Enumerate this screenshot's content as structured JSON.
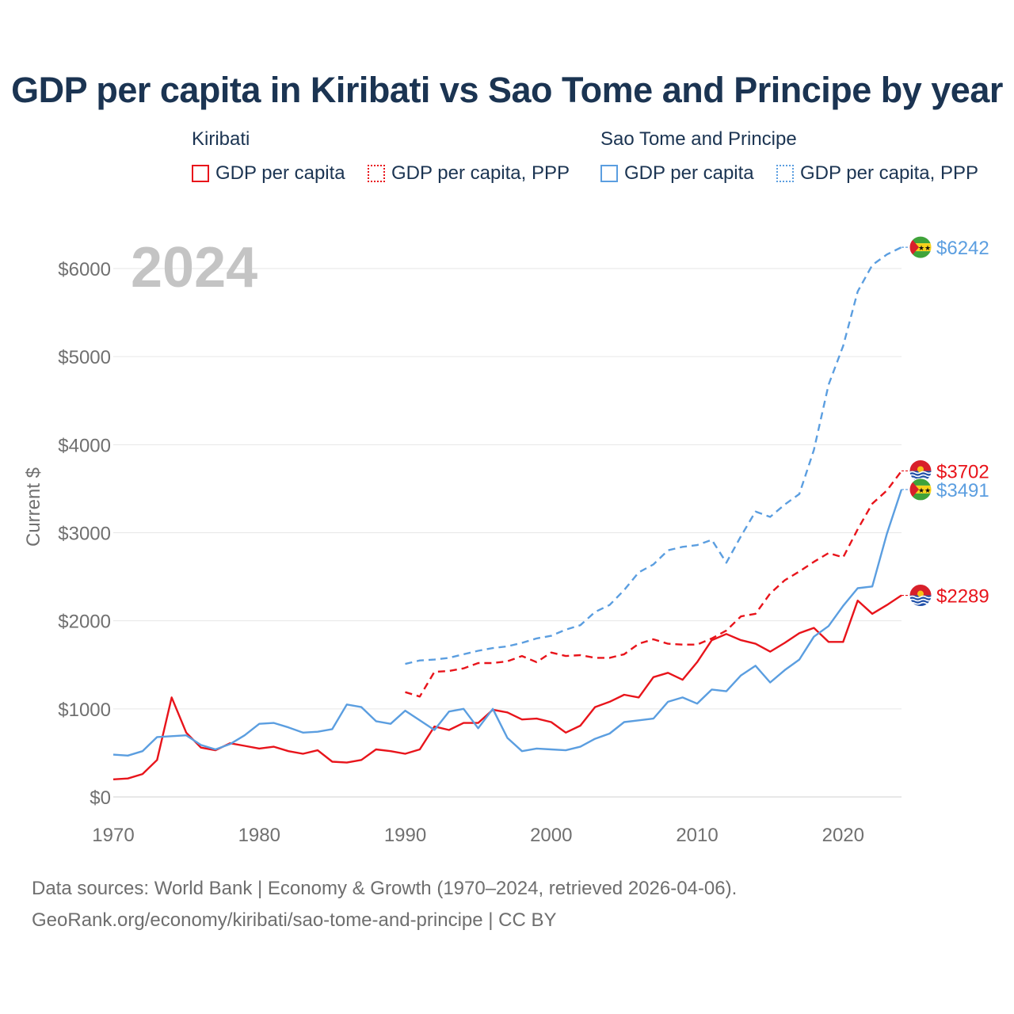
{
  "title": "GDP per capita in Kiribati vs Sao Tome and Principe by year",
  "legend": {
    "groups": [
      {
        "country": "Kiribati",
        "color": "#e8141b",
        "items": [
          {
            "label": "GDP per capita",
            "style": "solid"
          },
          {
            "label": "GDP per capita, PPP",
            "style": "dotted"
          }
        ]
      },
      {
        "country": "Sao Tome and Principe",
        "color": "#5b9ee0",
        "items": [
          {
            "label": "GDP per capita",
            "style": "solid"
          },
          {
            "label": "GDP per capita, PPP",
            "style": "dotted"
          }
        ]
      }
    ]
  },
  "year_watermark": "2024",
  "footer": {
    "line1": "Data sources: World Bank | Economy & Growth (1970–2024, retrieved 2026-04-06).",
    "line2": "GeoRank.org/economy/kiribati/sao-tome-and-principe | CC BY"
  },
  "chart_data": {
    "type": "line",
    "title": "GDP per capita in Kiribati vs Sao Tome and Principe by year",
    "xlabel": "",
    "ylabel": "Current $",
    "xlim": [
      1970,
      2024
    ],
    "ylim": [
      0,
      6000
    ],
    "x_ticks": [
      1970,
      1980,
      1990,
      2000,
      2010,
      2020
    ],
    "y_ticks": [
      0,
      1000,
      2000,
      3000,
      4000,
      5000,
      6000
    ],
    "y_tick_labels": [
      "$0",
      "$1000",
      "$2000",
      "$3000",
      "$4000",
      "$5000",
      "$6000"
    ],
    "grid": true,
    "series": [
      {
        "name": "Kiribati GDP per capita",
        "color": "#e8141b",
        "dash": "solid",
        "x_start": 1970,
        "values": [
          200,
          210,
          260,
          420,
          1130,
          730,
          560,
          530,
          610,
          580,
          550,
          570,
          520,
          490,
          530,
          400,
          390,
          420,
          540,
          520,
          490,
          540,
          800,
          760,
          840,
          840,
          990,
          960,
          880,
          890,
          850,
          730,
          810,
          1020,
          1080,
          1160,
          1130,
          1360,
          1410,
          1330,
          1530,
          1780,
          1850,
          1780,
          1740,
          1650,
          1750,
          1860,
          1920,
          1760,
          1760,
          2230,
          2080,
          2180,
          2289
        ],
        "end_label": "$2289"
      },
      {
        "name": "Kiribati GDP per capita, PPP",
        "color": "#e8141b",
        "dash": "dashed",
        "x_start": 1990,
        "values": [
          1190,
          1140,
          1420,
          1430,
          1460,
          1520,
          1520,
          1540,
          1600,
          1530,
          1640,
          1600,
          1610,
          1580,
          1580,
          1620,
          1740,
          1790,
          1740,
          1730,
          1730,
          1800,
          1890,
          2050,
          2080,
          2310,
          2460,
          2560,
          2670,
          2770,
          2720,
          3040,
          3330,
          3480,
          3702
        ],
        "end_label": "$3702"
      },
      {
        "name": "Sao Tome and Principe GDP per capita",
        "color": "#5b9ee0",
        "dash": "solid",
        "x_start": 1970,
        "values": [
          480,
          470,
          520,
          680,
          690,
          700,
          590,
          540,
          600,
          700,
          830,
          840,
          790,
          730,
          740,
          770,
          1050,
          1020,
          860,
          830,
          980,
          870,
          760,
          970,
          1000,
          780,
          1000,
          670,
          520,
          550,
          540,
          530,
          570,
          660,
          720,
          850,
          870,
          890,
          1080,
          1130,
          1060,
          1220,
          1200,
          1380,
          1490,
          1300,
          1440,
          1560,
          1820,
          1940,
          2170,
          2370,
          2390,
          2990,
          3491
        ],
        "end_label": "$3491"
      },
      {
        "name": "Sao Tome and Principe GDP per capita, PPP",
        "color": "#5b9ee0",
        "dash": "dashed",
        "x_start": 1990,
        "values": [
          1510,
          1550,
          1560,
          1580,
          1620,
          1660,
          1690,
          1710,
          1750,
          1800,
          1830,
          1900,
          1950,
          2100,
          2180,
          2350,
          2550,
          2640,
          2800,
          2840,
          2860,
          2920,
          2660,
          2960,
          3240,
          3180,
          3320,
          3440,
          3940,
          4680,
          5120,
          5740,
          6040,
          6160,
          6242
        ],
        "end_label": "$6242"
      }
    ]
  }
}
